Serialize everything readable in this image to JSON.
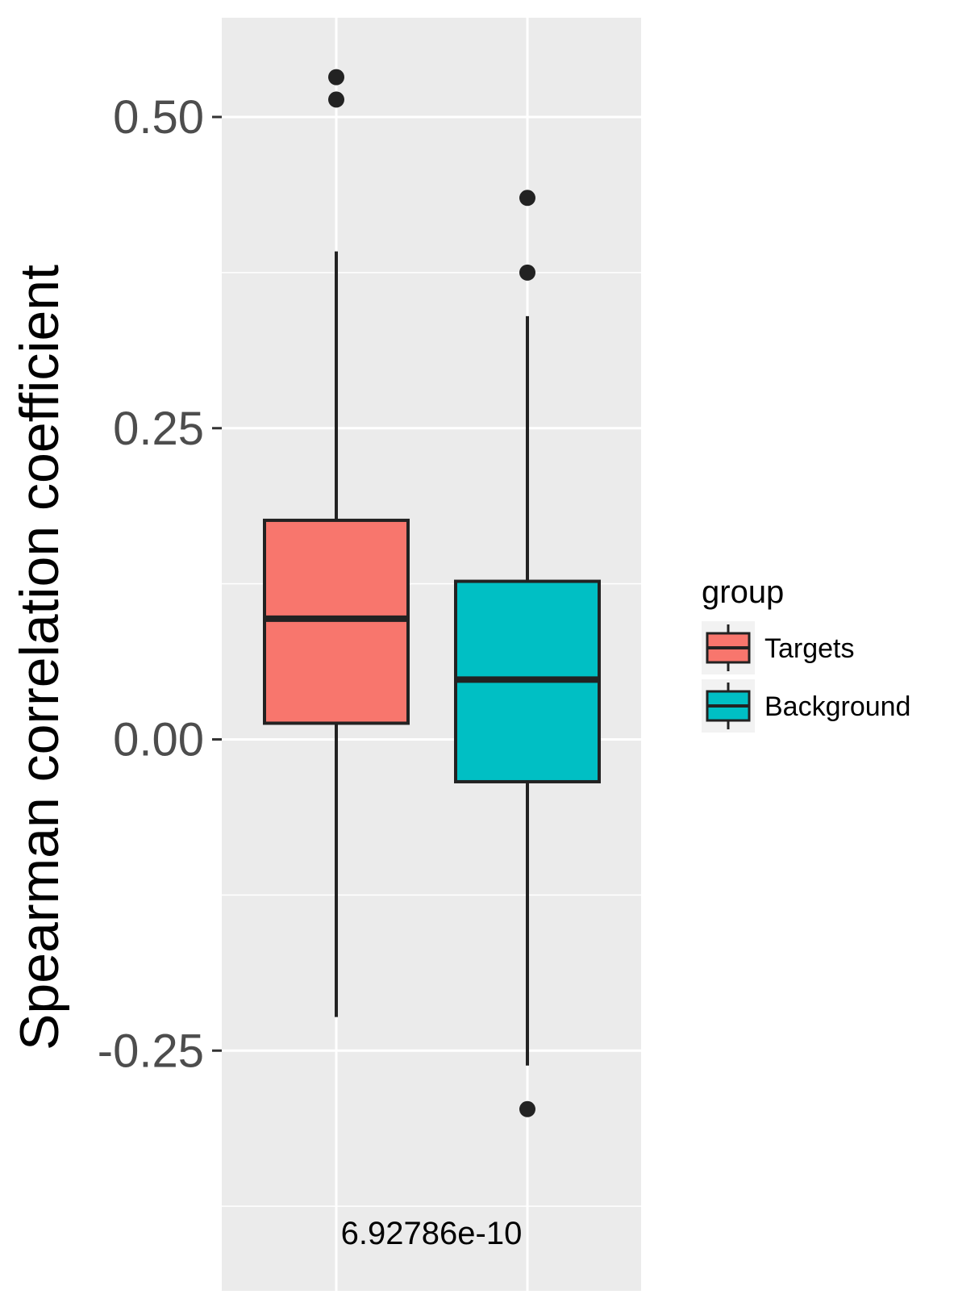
{
  "chart_data": {
    "type": "boxplot",
    "title": "",
    "xlabel": "",
    "ylabel": "Spearman correlation coefficient",
    "ylim": [
      -0.38,
      0.58
    ],
    "yticks": [
      0.5,
      0.25,
      0.0,
      -0.25
    ],
    "ytick_labels": [
      "0.50",
      "0.25",
      "0.00",
      "-0.25"
    ],
    "annotation": "6.92786e-10",
    "grid": true,
    "legend_position": "right",
    "legend_title": "group",
    "series": [
      {
        "name": "Targets",
        "color": "#F8766D",
        "whisker_low": -0.223,
        "q1": 0.013,
        "median": 0.097,
        "q3": 0.176,
        "whisker_high": 0.392,
        "outliers": [
          0.532,
          0.514
        ]
      },
      {
        "name": "Background",
        "color": "#00BFC4",
        "whisker_low": -0.262,
        "q1": -0.034,
        "median": 0.048,
        "q3": 0.127,
        "whisker_high": 0.34,
        "outliers": [
          0.435,
          0.375,
          -0.297
        ]
      }
    ]
  }
}
